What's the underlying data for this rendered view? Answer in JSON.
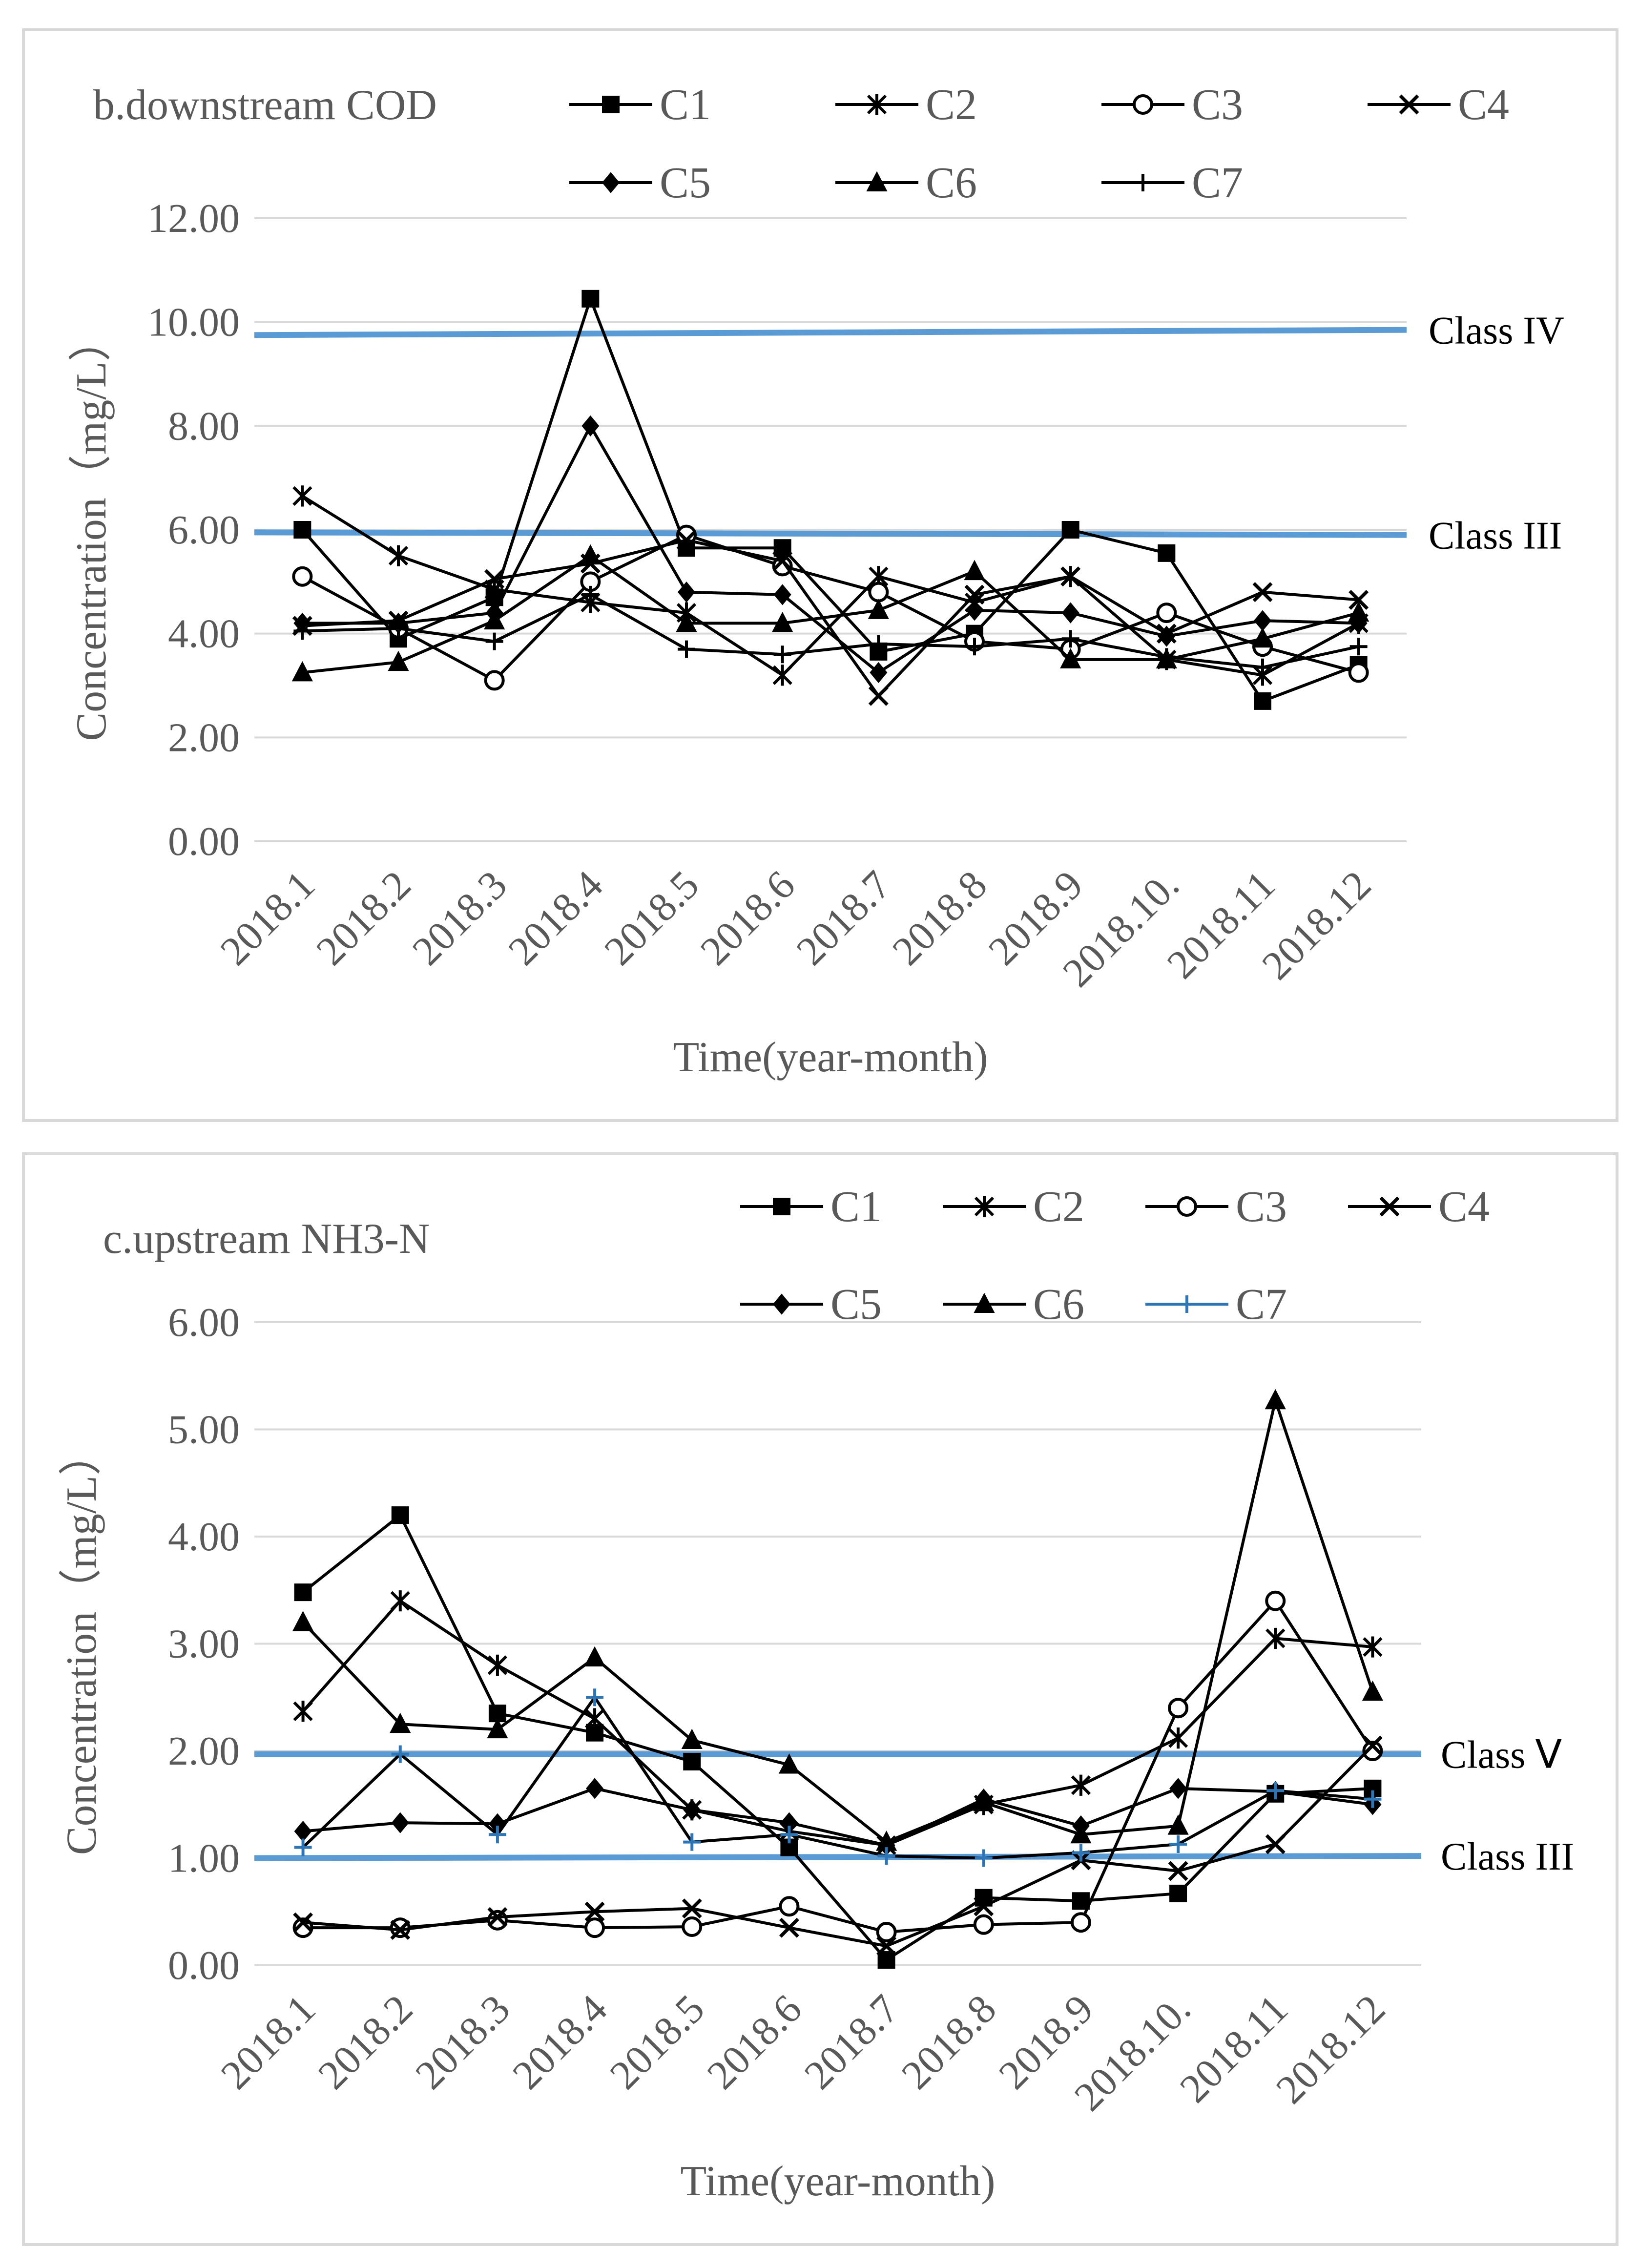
{
  "chart_data": [
    {
      "type": "line",
      "title": "b.downstream  COD",
      "xlabel": "Time(year-month)",
      "ylabel": "Concentration（mg/L）",
      "ylim": [
        0,
        12
      ],
      "yticks": [
        "0.00",
        "2.00",
        "4.00",
        "6.00",
        "8.00",
        "10.00",
        "12.00"
      ],
      "ytick_values": [
        0,
        2,
        4,
        6,
        8,
        10,
        12
      ],
      "categories": [
        "2018.1",
        "2018.2",
        "2018.3",
        "2018.4",
        "2018.5",
        "2018.6",
        "2018.7",
        "2018.8",
        "2018.9",
        "2018.10.",
        "2018.11",
        "2018.12"
      ],
      "series": [
        {
          "name": "C1",
          "marker": "square",
          "color": "#000000",
          "values": [
            6.0,
            3.9,
            4.7,
            10.45,
            5.65,
            5.65,
            3.65,
            4.0,
            6.0,
            5.55,
            2.7,
            3.4
          ]
        },
        {
          "name": "C2",
          "marker": "star",
          "color": "#000000",
          "values": [
            6.65,
            5.5,
            4.85,
            4.6,
            4.4,
            3.2,
            5.1,
            4.6,
            5.1,
            3.5,
            3.2,
            4.2
          ]
        },
        {
          "name": "C3",
          "marker": "circle",
          "color": "#000000",
          "values": [
            5.1,
            4.1,
            3.1,
            5.0,
            5.9,
            5.3,
            4.8,
            3.85,
            3.7,
            4.4,
            3.75,
            3.25
          ]
        },
        {
          "name": "C4",
          "marker": "x",
          "color": "#000000",
          "values": [
            4.15,
            4.25,
            5.05,
            5.35,
            5.8,
            5.4,
            2.8,
            4.75,
            5.1,
            4.0,
            4.8,
            4.65
          ]
        },
        {
          "name": "C5",
          "marker": "diamond",
          "color": "#000000",
          "values": [
            4.2,
            4.2,
            4.4,
            8.0,
            4.8,
            4.75,
            3.25,
            4.45,
            4.4,
            3.95,
            4.25,
            4.2
          ]
        },
        {
          "name": "C6",
          "marker": "triangle",
          "color": "#000000",
          "values": [
            3.25,
            3.45,
            4.25,
            5.5,
            4.2,
            4.2,
            4.45,
            5.2,
            3.5,
            3.5,
            3.9,
            4.4
          ]
        },
        {
          "name": "C7",
          "marker": "plus",
          "color": "#000000",
          "values": [
            4.05,
            4.1,
            3.85,
            4.75,
            3.7,
            3.6,
            3.8,
            3.75,
            3.9,
            3.55,
            3.35,
            3.75
          ]
        }
      ],
      "reference_lines": [
        {
          "label": "Class IV",
          "value_start": 9.75,
          "value_end": 9.85,
          "color": "#5b9bd5"
        },
        {
          "label": "Class III",
          "value_start": 5.95,
          "value_end": 5.9,
          "color": "#5b9bd5"
        }
      ]
    },
    {
      "type": "line",
      "title": "c.upstream  NH3-N",
      "xlabel": "Time(year-month)",
      "ylabel": "Concentration（mg/L）",
      "ylim": [
        0,
        6
      ],
      "yticks": [
        "0.00",
        "1.00",
        "2.00",
        "3.00",
        "4.00",
        "5.00",
        "6.00"
      ],
      "ytick_values": [
        0,
        1,
        2,
        3,
        4,
        5,
        6
      ],
      "categories": [
        "2018.1",
        "2018.2",
        "2018.3",
        "2018.4",
        "2018.5",
        "2018.6",
        "2018.7",
        "2018.8",
        "2018.9",
        "2018.10.",
        "2018.11",
        "2018.12"
      ],
      "series": [
        {
          "name": "C1",
          "marker": "square",
          "color": "#000000",
          "values": [
            3.48,
            4.2,
            2.35,
            2.17,
            1.9,
            1.1,
            0.05,
            0.63,
            0.6,
            0.67,
            1.6,
            1.65
          ]
        },
        {
          "name": "C2",
          "marker": "star",
          "color": "#000000",
          "values": [
            2.37,
            3.4,
            2.8,
            2.3,
            1.45,
            1.25,
            1.12,
            1.5,
            1.68,
            2.12,
            3.05,
            2.97
          ]
        },
        {
          "name": "C3",
          "marker": "circle",
          "color": "#000000",
          "values": [
            0.35,
            0.35,
            0.42,
            0.35,
            0.36,
            0.55,
            0.31,
            0.38,
            0.4,
            2.4,
            3.4,
            2.0
          ]
        },
        {
          "name": "C4",
          "marker": "x",
          "color": "#000000",
          "values": [
            0.4,
            0.33,
            0.45,
            0.5,
            0.53,
            0.35,
            0.18,
            0.55,
            0.98,
            0.88,
            1.13,
            2.05
          ]
        },
        {
          "name": "C5",
          "marker": "diamond",
          "color": "#000000",
          "values": [
            1.25,
            1.33,
            1.32,
            1.65,
            1.45,
            1.33,
            1.12,
            1.55,
            1.3,
            1.65,
            1.62,
            1.5
          ]
        },
        {
          "name": "C6",
          "marker": "triangle",
          "color": "#000000",
          "values": [
            3.2,
            2.25,
            2.2,
            2.87,
            2.1,
            1.87,
            1.15,
            1.52,
            1.22,
            1.3,
            5.27,
            2.55
          ]
        },
        {
          "name": "C7",
          "marker": "plus",
          "color": "#2e75b6",
          "values": [
            1.1,
            1.97,
            1.22,
            2.5,
            1.15,
            1.22,
            1.02,
            1.0,
            1.05,
            1.13,
            1.63,
            1.55
          ]
        }
      ],
      "reference_lines": [
        {
          "label": "Class Ⅴ",
          "value_start": 1.97,
          "value_end": 1.97,
          "color": "#5b9bd5"
        },
        {
          "label": "Class III",
          "value_start": 1.0,
          "value_end": 1.02,
          "color": "#5b9bd5"
        }
      ]
    }
  ]
}
